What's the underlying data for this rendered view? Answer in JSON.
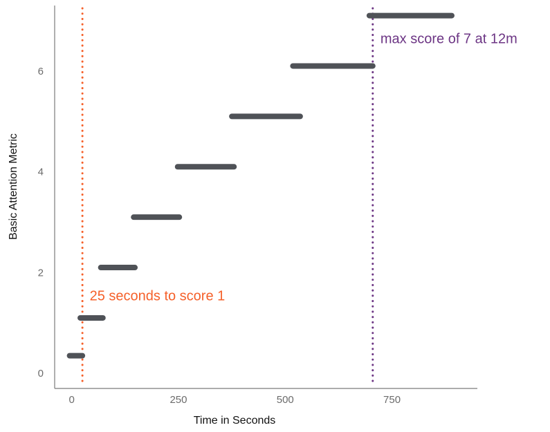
{
  "chart_data": {
    "type": "line",
    "title": "",
    "xlabel": "Time in Seconds",
    "ylabel": "Basic Attention Metric",
    "x_ticks": [
      0,
      250,
      500,
      750
    ],
    "x_tick_labels": [
      "0",
      "250",
      "500",
      "750"
    ],
    "y_ticks": [
      0,
      2,
      4,
      6
    ],
    "y_tick_labels": [
      "0",
      "2",
      "4",
      "6"
    ],
    "xlim": [
      -40,
      950
    ],
    "ylim": [
      -0.3,
      7.3
    ],
    "grid": false,
    "series": [
      {
        "style": "step-segments",
        "color": "#4f5257",
        "segments": [
          {
            "x_start": -5,
            "x_end": 25,
            "y": 0.35
          },
          {
            "x_start": 20,
            "x_end": 73,
            "y": 1.1
          },
          {
            "x_start": 68,
            "x_end": 148,
            "y": 2.1
          },
          {
            "x_start": 145,
            "x_end": 252,
            "y": 3.1
          },
          {
            "x_start": 248,
            "x_end": 380,
            "y": 4.1
          },
          {
            "x_start": 375,
            "x_end": 535,
            "y": 5.1
          },
          {
            "x_start": 518,
            "x_end": 705,
            "y": 6.1
          },
          {
            "x_start": 697,
            "x_end": 890,
            "y": 7.1
          }
        ]
      }
    ],
    "reference_lines": [
      {
        "orientation": "vertical",
        "x": 25,
        "color": "#f5602a",
        "style": "dotted"
      },
      {
        "orientation": "vertical",
        "x": 705,
        "color": "#6c3584",
        "style": "dotted"
      }
    ],
    "annotations": [
      {
        "text": "25 seconds to score 1",
        "x": 42,
        "y": 1.45,
        "color": "#f5602a"
      },
      {
        "text": "max score of 7 at 12m",
        "x": 723,
        "y": 6.55,
        "color": "#6c3584"
      }
    ]
  }
}
